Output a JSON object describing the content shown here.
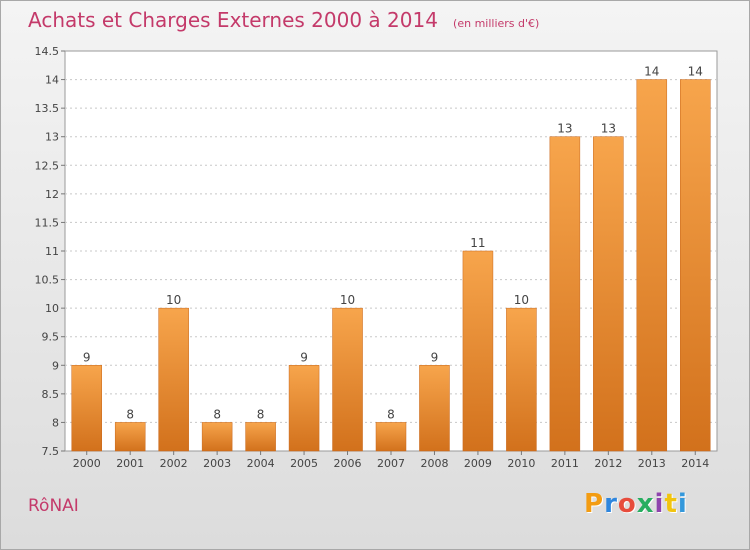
{
  "header": {
    "title": "Achats et Charges Externes 2000 à 2014",
    "subtitle": "(en milliers d'€)"
  },
  "footer": {
    "commune": "RôNAI",
    "brand_letters": [
      "P",
      "r",
      "o",
      "x",
      "i",
      "t",
      "i"
    ],
    "brand_colors": [
      "#f39c12",
      "#2e86de",
      "#e74c3c",
      "#27ae60",
      "#8e44ad",
      "#f1c40f",
      "#3498db"
    ]
  },
  "chart_data": {
    "type": "bar",
    "categories": [
      "2000",
      "2001",
      "2002",
      "2003",
      "2004",
      "2005",
      "2006",
      "2007",
      "2008",
      "2009",
      "2010",
      "2011",
      "2012",
      "2013",
      "2014"
    ],
    "values": [
      9,
      8,
      10,
      8,
      8,
      9,
      10,
      8,
      9,
      11,
      10,
      13,
      13,
      14,
      14
    ],
    "data_labels": [
      "9",
      "8",
      "10",
      "8",
      "8",
      "9",
      "10",
      "8",
      "9",
      "11",
      "10",
      "13",
      "13",
      "14",
      "14"
    ],
    "title": "Achats et Charges Externes 2000 à 2014",
    "subtitle": "(en milliers d'€)",
    "xlabel": "",
    "ylabel": "",
    "ylim": [
      7.5,
      14.5
    ],
    "yticks": [
      7.5,
      8,
      8.5,
      9,
      9.5,
      10,
      10.5,
      11,
      11.5,
      12,
      12.5,
      13,
      13.5,
      14,
      14.5
    ],
    "ytick_labels": [
      "7.5",
      "8",
      "8.5",
      "9",
      "9.5",
      "10",
      "10.5",
      "11",
      "11.5",
      "12",
      "12.5",
      "13",
      "13.5",
      "14",
      "14.5"
    ],
    "grid": true,
    "bar_color_top": "#f7a54c",
    "bar_color_bottom": "#d2711c"
  }
}
